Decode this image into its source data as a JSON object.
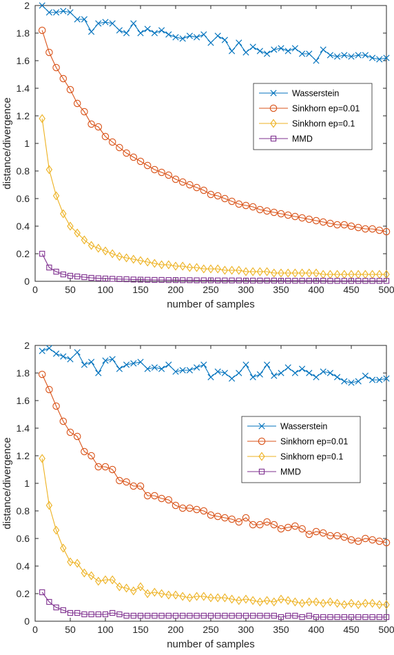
{
  "colors": {
    "wasserstein": "#0072BD",
    "sinkhorn_001": "#D95319",
    "sinkhorn_01": "#EDB120",
    "mmd": "#7E2F8E",
    "axis": "#262626"
  },
  "chart_data": [
    {
      "type": "line",
      "xlabel": "number of samples",
      "ylabel": "distance/divergence",
      "xlim": [
        0,
        500
      ],
      "ylim": [
        0,
        2
      ],
      "xticks": [
        "0",
        "50",
        "100",
        "150",
        "200",
        "250",
        "300",
        "350",
        "400",
        "450",
        "500"
      ],
      "yticks": [
        "0",
        "0.2",
        "0.4",
        "0.6",
        "0.8",
        "1",
        "1.2",
        "1.4",
        "1.6",
        "1.8",
        "2"
      ],
      "grid": false,
      "legend": "right",
      "x": [
        10,
        20,
        30,
        40,
        50,
        60,
        70,
        80,
        90,
        100,
        110,
        120,
        130,
        140,
        150,
        160,
        170,
        180,
        190,
        200,
        210,
        220,
        230,
        240,
        250,
        260,
        270,
        280,
        290,
        300,
        310,
        320,
        330,
        340,
        350,
        360,
        370,
        380,
        390,
        400,
        410,
        420,
        430,
        440,
        450,
        460,
        470,
        480,
        490,
        500
      ],
      "series": [
        {
          "name": "Wasserstein",
          "marker": "x",
          "color_key": "wasserstein",
          "values": [
            2.0,
            1.95,
            1.95,
            1.96,
            1.95,
            1.9,
            1.9,
            1.81,
            1.87,
            1.88,
            1.87,
            1.82,
            1.8,
            1.87,
            1.8,
            1.83,
            1.8,
            1.82,
            1.79,
            1.77,
            1.76,
            1.78,
            1.77,
            1.79,
            1.73,
            1.78,
            1.75,
            1.67,
            1.73,
            1.66,
            1.7,
            1.67,
            1.65,
            1.68,
            1.69,
            1.67,
            1.69,
            1.65,
            1.65,
            1.6,
            1.68,
            1.64,
            1.63,
            1.64,
            1.63,
            1.64,
            1.64,
            1.62,
            1.61,
            1.62
          ]
        },
        {
          "name": "Sinkhorn ep=0.01",
          "marker": "o",
          "color_key": "sinkhorn_001",
          "values": [
            1.82,
            1.66,
            1.55,
            1.47,
            1.39,
            1.29,
            1.23,
            1.14,
            1.12,
            1.05,
            1.01,
            0.97,
            0.93,
            0.9,
            0.87,
            0.84,
            0.81,
            0.79,
            0.77,
            0.74,
            0.72,
            0.7,
            0.68,
            0.66,
            0.63,
            0.62,
            0.6,
            0.58,
            0.56,
            0.55,
            0.54,
            0.52,
            0.51,
            0.5,
            0.49,
            0.48,
            0.47,
            0.46,
            0.45,
            0.44,
            0.43,
            0.42,
            0.41,
            0.41,
            0.4,
            0.39,
            0.38,
            0.38,
            0.37,
            0.36
          ]
        },
        {
          "name": "Sinkhorn ep=0.1",
          "marker": "diamond",
          "color_key": "sinkhorn_01",
          "values": [
            1.18,
            0.81,
            0.62,
            0.49,
            0.4,
            0.35,
            0.3,
            0.26,
            0.24,
            0.22,
            0.2,
            0.18,
            0.17,
            0.16,
            0.15,
            0.14,
            0.13,
            0.12,
            0.12,
            0.11,
            0.11,
            0.1,
            0.1,
            0.09,
            0.09,
            0.09,
            0.08,
            0.08,
            0.08,
            0.07,
            0.07,
            0.07,
            0.07,
            0.06,
            0.06,
            0.06,
            0.06,
            0.06,
            0.06,
            0.06,
            0.05,
            0.05,
            0.05,
            0.05,
            0.05,
            0.05,
            0.05,
            0.05,
            0.05,
            0.05
          ]
        },
        {
          "name": "MMD",
          "marker": "square",
          "color_key": "mmd",
          "values": [
            0.2,
            0.1,
            0.07,
            0.05,
            0.04,
            0.035,
            0.03,
            0.025,
            0.022,
            0.02,
            0.018,
            0.016,
            0.015,
            0.013,
            0.012,
            0.011,
            0.01,
            0.01,
            0.009,
            0.009,
            0.008,
            0.008,
            0.007,
            0.007,
            0.007,
            0.006,
            0.006,
            0.006,
            0.006,
            0.005,
            0.005,
            0.005,
            0.005,
            0.005,
            0.004,
            0.004,
            0.004,
            0.004,
            0.004,
            0.004,
            0.004,
            0.003,
            0.003,
            0.003,
            0.003,
            0.003,
            0.003,
            0.003,
            0.003,
            0.003
          ]
        }
      ]
    },
    {
      "type": "line",
      "xlabel": "number of samples",
      "ylabel": "distance/divergence",
      "xlim": [
        0,
        500
      ],
      "ylim": [
        0,
        2
      ],
      "xticks": [
        "0",
        "50",
        "100",
        "150",
        "200",
        "250",
        "300",
        "350",
        "400",
        "450",
        "500"
      ],
      "yticks": [
        "0",
        "0.2",
        "0.4",
        "0.6",
        "0.8",
        "1",
        "1.2",
        "1.4",
        "1.6",
        "1.8",
        "2"
      ],
      "grid": false,
      "legend": "right",
      "x": [
        10,
        20,
        30,
        40,
        50,
        60,
        70,
        80,
        90,
        100,
        110,
        120,
        130,
        140,
        150,
        160,
        170,
        180,
        190,
        200,
        210,
        220,
        230,
        240,
        250,
        260,
        270,
        280,
        290,
        300,
        310,
        320,
        330,
        340,
        350,
        360,
        370,
        380,
        390,
        400,
        410,
        420,
        430,
        440,
        450,
        460,
        470,
        480,
        490,
        500
      ],
      "series": [
        {
          "name": "Wasserstein",
          "marker": "x",
          "color_key": "wasserstein",
          "values": [
            1.96,
            1.98,
            1.94,
            1.92,
            1.9,
            1.95,
            1.86,
            1.88,
            1.8,
            1.89,
            1.9,
            1.83,
            1.86,
            1.87,
            1.88,
            1.83,
            1.84,
            1.83,
            1.86,
            1.81,
            1.82,
            1.82,
            1.84,
            1.86,
            1.77,
            1.81,
            1.8,
            1.76,
            1.8,
            1.86,
            1.77,
            1.79,
            1.86,
            1.78,
            1.8,
            1.84,
            1.8,
            1.83,
            1.8,
            1.77,
            1.81,
            1.8,
            1.77,
            1.74,
            1.73,
            1.74,
            1.78,
            1.75,
            1.75,
            1.76
          ]
        },
        {
          "name": "Sinkhorn ep=0.01",
          "marker": "o",
          "color_key": "sinkhorn_001",
          "values": [
            1.79,
            1.68,
            1.56,
            1.45,
            1.37,
            1.34,
            1.23,
            1.2,
            1.12,
            1.12,
            1.1,
            1.02,
            1.01,
            0.98,
            0.98,
            0.91,
            0.91,
            0.89,
            0.88,
            0.84,
            0.82,
            0.82,
            0.81,
            0.8,
            0.77,
            0.76,
            0.75,
            0.74,
            0.72,
            0.75,
            0.7,
            0.7,
            0.72,
            0.7,
            0.67,
            0.68,
            0.69,
            0.67,
            0.63,
            0.65,
            0.64,
            0.62,
            0.62,
            0.61,
            0.59,
            0.58,
            0.6,
            0.59,
            0.58,
            0.57
          ]
        },
        {
          "name": "Sinkhorn ep=0.1",
          "marker": "diamond",
          "color_key": "sinkhorn_01",
          "values": [
            1.18,
            0.84,
            0.66,
            0.53,
            0.43,
            0.42,
            0.35,
            0.33,
            0.29,
            0.3,
            0.3,
            0.25,
            0.24,
            0.22,
            0.25,
            0.2,
            0.21,
            0.2,
            0.19,
            0.19,
            0.18,
            0.17,
            0.18,
            0.18,
            0.17,
            0.17,
            0.17,
            0.16,
            0.15,
            0.16,
            0.15,
            0.14,
            0.15,
            0.14,
            0.16,
            0.15,
            0.14,
            0.13,
            0.14,
            0.14,
            0.13,
            0.14,
            0.13,
            0.12,
            0.13,
            0.12,
            0.13,
            0.13,
            0.12,
            0.12
          ]
        },
        {
          "name": "MMD",
          "marker": "square",
          "color_key": "mmd",
          "values": [
            0.21,
            0.14,
            0.1,
            0.08,
            0.06,
            0.06,
            0.05,
            0.05,
            0.05,
            0.05,
            0.06,
            0.05,
            0.04,
            0.04,
            0.04,
            0.04,
            0.04,
            0.04,
            0.04,
            0.04,
            0.04,
            0.04,
            0.04,
            0.04,
            0.04,
            0.04,
            0.04,
            0.04,
            0.04,
            0.04,
            0.04,
            0.04,
            0.04,
            0.04,
            0.03,
            0.04,
            0.04,
            0.03,
            0.04,
            0.03,
            0.03,
            0.03,
            0.03,
            0.03,
            0.03,
            0.03,
            0.03,
            0.03,
            0.03,
            0.03
          ]
        }
      ]
    }
  ]
}
